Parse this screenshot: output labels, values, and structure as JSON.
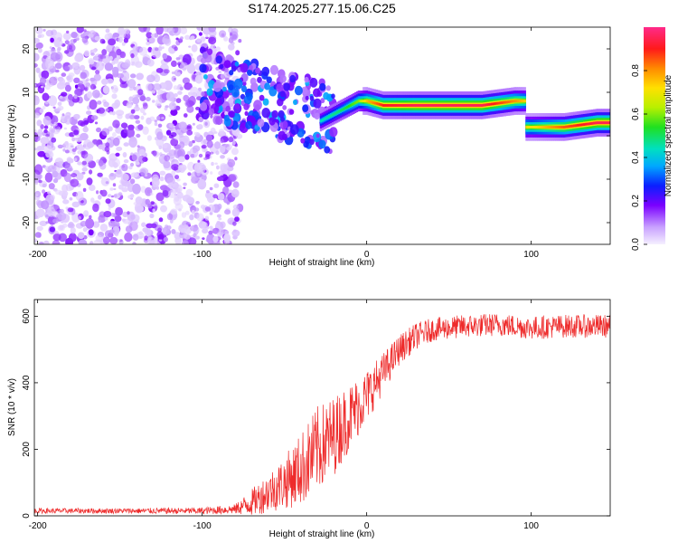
{
  "title": "S174.2025.277.15.06.C25",
  "chart_data": [
    {
      "type": "heatmap",
      "name": "spectrogram",
      "xlabel": "Height of straight line (km)",
      "ylabel": "Frequency (Hz)",
      "xlim": [
        -202,
        148
      ],
      "ylim": [
        -25,
        25
      ],
      "xticks": [
        -200,
        -100,
        0,
        100
      ],
      "yticks": [
        -20,
        -10,
        0,
        10,
        20
      ],
      "colorbar": {
        "label": "Normalized spectral amplitude",
        "range": [
          0,
          1
        ],
        "ticks": [
          "0.0",
          "0.2",
          "0.4",
          "0.6",
          "0.8"
        ],
        "tick_values": [
          0.0,
          0.2,
          0.4,
          0.6,
          0.8
        ]
      },
      "ridge": [
        {
          "x": -25,
          "y": 4,
          "amp": 0.45
        },
        {
          "x": -15,
          "y": 6,
          "amp": 0.5
        },
        {
          "x": -5,
          "y": 8,
          "amp": 0.6
        },
        {
          "x": 0,
          "y": 8,
          "amp": 0.75
        },
        {
          "x": 10,
          "y": 7,
          "amp": 0.9
        },
        {
          "x": 30,
          "y": 7,
          "amp": 0.95
        },
        {
          "x": 50,
          "y": 7,
          "amp": 0.95
        },
        {
          "x": 70,
          "y": 7,
          "amp": 0.95
        },
        {
          "x": 90,
          "y": 8,
          "amp": 0.8
        },
        {
          "x": 100,
          "y": 2,
          "amp": 0.7
        },
        {
          "x": 120,
          "y": 2,
          "amp": 0.85
        },
        {
          "x": 140,
          "y": 3,
          "amp": 0.95
        }
      ]
    },
    {
      "type": "line",
      "name": "snr",
      "xlabel": "Height of straight line (km)",
      "ylabel": "SNR (10 * v/v)",
      "xlim": [
        -202,
        148
      ],
      "ylim": [
        0,
        650
      ],
      "xticks": [
        -200,
        -100,
        0,
        100
      ],
      "yticks": [
        0,
        200,
        400,
        600
      ],
      "color": "#ee2b2b",
      "x": [
        -200,
        -150,
        -100,
        -80,
        -70,
        -60,
        -50,
        -40,
        -30,
        -20,
        -10,
        0,
        10,
        20,
        30,
        40,
        60,
        80,
        100,
        120,
        148
      ],
      "y": [
        15,
        15,
        15,
        20,
        40,
        70,
        100,
        140,
        200,
        240,
        300,
        360,
        430,
        500,
        540,
        560,
        570,
        575,
        565,
        570,
        570
      ],
      "noise": [
        8,
        8,
        10,
        15,
        40,
        60,
        80,
        110,
        130,
        120,
        100,
        80,
        60,
        45,
        40,
        35,
        35,
        35,
        35,
        35,
        35
      ]
    }
  ]
}
